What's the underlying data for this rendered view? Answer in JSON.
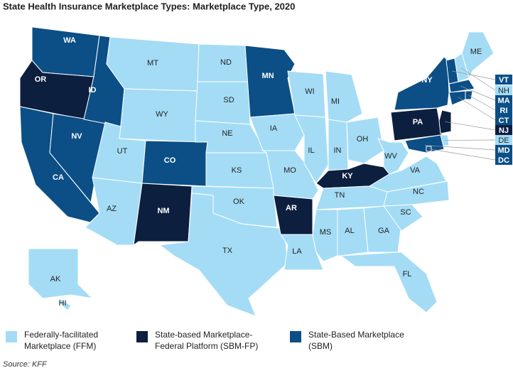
{
  "title": "State Health Insurance Marketplace Types: Marketplace Type, 2020",
  "legend": [
    {
      "lines": [
        "Federally-facilitated",
        "Marketplace (FFM)"
      ],
      "color": "#a4dcf6"
    },
    {
      "lines": [
        "State-based Marketplace-",
        "Federal Platform (SBM-FP)"
      ],
      "color": "#0d1f3f"
    },
    {
      "lines": [
        "State-Based Marketplace",
        "(SBM)"
      ],
      "color": "#0b4f86"
    }
  ],
  "states": [
    {
      "abbr": "WA",
      "category": 2
    },
    {
      "abbr": "OR",
      "category": 1
    },
    {
      "abbr": "CA",
      "category": 2
    },
    {
      "abbr": "NV",
      "category": 2
    },
    {
      "abbr": "ID",
      "category": 2
    },
    {
      "abbr": "MT",
      "category": 0
    },
    {
      "abbr": "WY",
      "category": 0
    },
    {
      "abbr": "UT",
      "category": 0
    },
    {
      "abbr": "AZ",
      "category": 0
    },
    {
      "abbr": "CO",
      "category": 2
    },
    {
      "abbr": "NM",
      "category": 1
    },
    {
      "abbr": "ND",
      "category": 0
    },
    {
      "abbr": "SD",
      "category": 0
    },
    {
      "abbr": "NE",
      "category": 0
    },
    {
      "abbr": "KS",
      "category": 0
    },
    {
      "abbr": "OK",
      "category": 0
    },
    {
      "abbr": "TX",
      "category": 0
    },
    {
      "abbr": "MN",
      "category": 2
    },
    {
      "abbr": "IA",
      "category": 0
    },
    {
      "abbr": "MO",
      "category": 0
    },
    {
      "abbr": "AR",
      "category": 1
    },
    {
      "abbr": "LA",
      "category": 0
    },
    {
      "abbr": "WI",
      "category": 0
    },
    {
      "abbr": "IL",
      "category": 0
    },
    {
      "abbr": "MI",
      "category": 0
    },
    {
      "abbr": "IN",
      "category": 0
    },
    {
      "abbr": "OH",
      "category": 0
    },
    {
      "abbr": "KY",
      "category": 1
    },
    {
      "abbr": "TN",
      "category": 0
    },
    {
      "abbr": "MS",
      "category": 0
    },
    {
      "abbr": "AL",
      "category": 0
    },
    {
      "abbr": "GA",
      "category": 0
    },
    {
      "abbr": "FL",
      "category": 0
    },
    {
      "abbr": "SC",
      "category": 0
    },
    {
      "abbr": "NC",
      "category": 0
    },
    {
      "abbr": "VA",
      "category": 0
    },
    {
      "abbr": "WV",
      "category": 0
    },
    {
      "abbr": "PA",
      "category": 1
    },
    {
      "abbr": "NY",
      "category": 2
    },
    {
      "abbr": "ME",
      "category": 0
    },
    {
      "abbr": "AK",
      "category": 0
    },
    {
      "abbr": "HI",
      "category": 0
    },
    {
      "abbr": "VT",
      "category": 2
    },
    {
      "abbr": "NH",
      "category": 0
    },
    {
      "abbr": "MA",
      "category": 2
    },
    {
      "abbr": "RI",
      "category": 2
    },
    {
      "abbr": "CT",
      "category": 2
    },
    {
      "abbr": "NJ",
      "category": 1
    },
    {
      "abbr": "DE",
      "category": 0
    },
    {
      "abbr": "MD",
      "category": 2
    },
    {
      "abbr": "DC",
      "category": 2
    }
  ],
  "source": "Source: KFF"
}
